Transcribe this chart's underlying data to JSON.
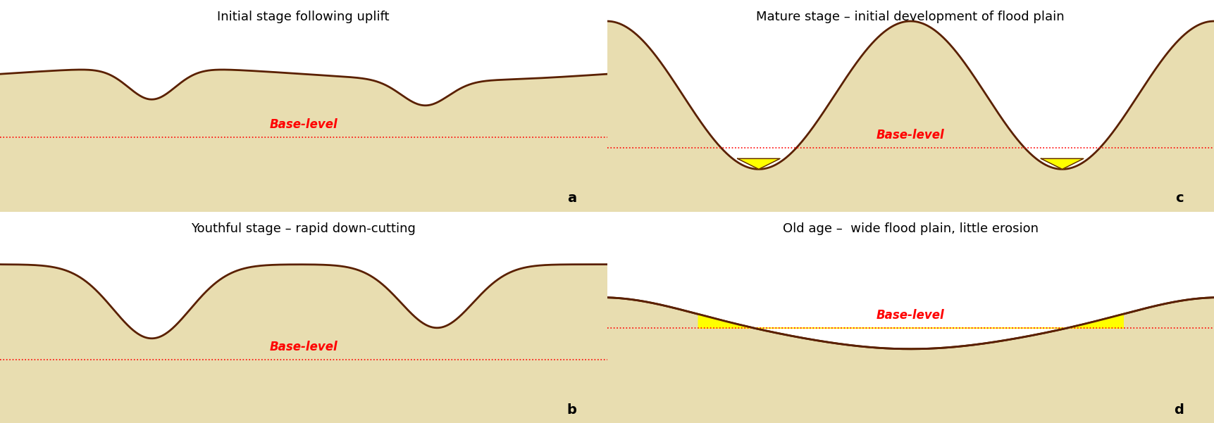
{
  "background_color": "#f5f0d8",
  "land_color": "#e8ddb0",
  "outline_color": "#5a2000",
  "base_level_color": "#ff0000",
  "yellow_color": "#ffff00",
  "white_color": "#ffffff",
  "title_fontsize": 13,
  "label_fontsize": 12,
  "base_label_fontsize": 12,
  "letter_fontsize": 14,
  "panels": [
    "a",
    "b",
    "c",
    "d"
  ],
  "titles": [
    "Initial stage following uplift",
    "Youthful stage – rapid down-cutting",
    "Mature stage – initial development of flood plain",
    "Old age –  wide flood plain, little erosion"
  ]
}
